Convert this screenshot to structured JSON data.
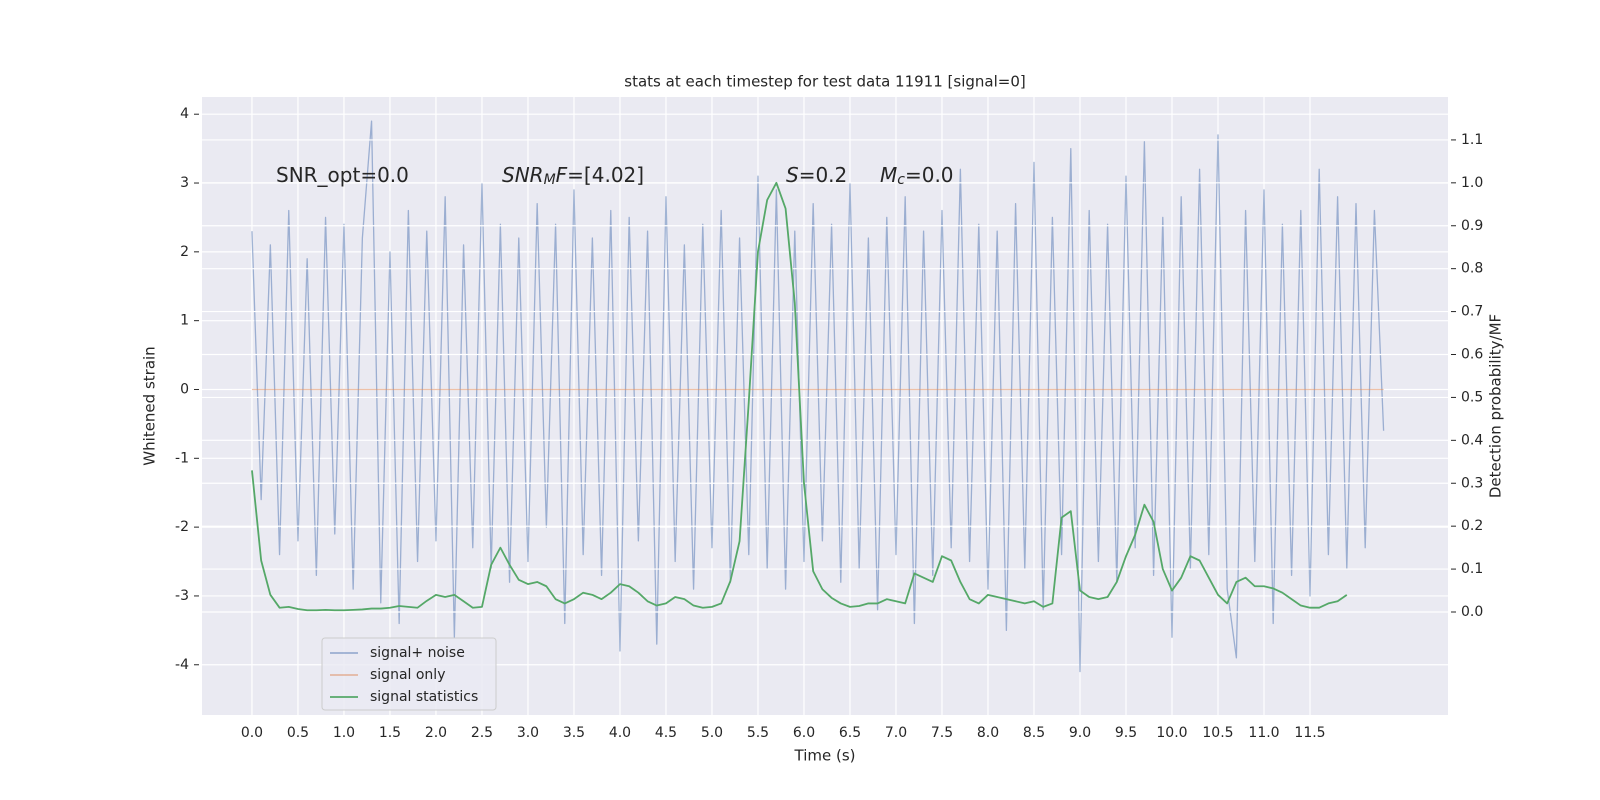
{
  "chart_data": {
    "type": "line",
    "title": "stats at each timestep for test data 11911 [signal=0]",
    "xlabel": "Time (s)",
    "ylabel": "Whitened strain",
    "y2label": "Detection probability/MF",
    "xlim": [
      -0.543,
      13.0
    ],
    "ylim": [
      -4.73,
      4.25
    ],
    "y2lim": [
      -0.24,
      1.2
    ],
    "xticks": [
      {
        "value": 0,
        "label": "0.0"
      },
      0.5,
      {
        "value": 1,
        "label": "1.0"
      },
      1.5,
      {
        "value": 2,
        "label": "2.0"
      },
      2.5,
      {
        "value": 3,
        "label": "3.0"
      },
      3.5,
      {
        "value": 4,
        "label": "4.0"
      },
      4.5,
      {
        "value": 5,
        "label": "5.0"
      },
      5.5,
      {
        "value": 6,
        "label": "6.0"
      },
      6.5,
      {
        "value": 7,
        "label": "7.0"
      },
      7.5,
      {
        "value": 8,
        "label": "8.0"
      },
      8.5,
      {
        "value": 9,
        "label": "9.0"
      },
      9.5,
      {
        "value": 10,
        "label": "10.0"
      },
      10.5,
      {
        "value": 11,
        "label": "11.0"
      },
      11.5
    ],
    "yticks": [
      -4,
      -3,
      -2,
      -1,
      0,
      1,
      2,
      3,
      4
    ],
    "y2ticks": [
      {
        "value": 0,
        "label": "0.0"
      },
      0.1,
      0.2,
      0.3,
      0.4,
      0.5,
      0.6,
      0.7,
      0.8,
      0.9,
      {
        "value": 1,
        "label": "1.0"
      },
      1.1
    ],
    "grid": true,
    "legend": "lower left",
    "annotations": [
      [
        {
          "text": "SNR_opt=0.0"
        }
      ],
      [
        {
          "text": "SNR",
          "italic": true
        },
        {
          "text": "M",
          "italic": true,
          "sub": true
        },
        {
          "text": "F",
          "italic": true
        },
        {
          "text": "=[4.02]"
        }
      ],
      [
        {
          "text": "S",
          "italic": true
        },
        {
          "text": "=0.2"
        }
      ],
      [
        {
          "text": "M",
          "italic": true
        },
        {
          "text": "c",
          "italic": true,
          "sub": true
        },
        {
          "text": "=0.0"
        }
      ]
    ],
    "series": [
      {
        "name": "signal+ noise",
        "color": "#4c72b0",
        "opacity": 0.5,
        "x": [
          0,
          0.1,
          0.2,
          0.3,
          0.4,
          0.5,
          0.6,
          0.7,
          0.8,
          0.9,
          1,
          1.1,
          1.2,
          1.3,
          1.4,
          1.5,
          1.6,
          1.7,
          1.8,
          1.9,
          2,
          2.1,
          2.2,
          2.3,
          2.4,
          2.5,
          2.6,
          2.7,
          2.8,
          2.9,
          3,
          3.1,
          3.2,
          3.3,
          3.4,
          3.5,
          3.6,
          3.7,
          3.8,
          3.9,
          4,
          4.1,
          4.2,
          4.3,
          4.4,
          4.5,
          4.6,
          4.7,
          4.8,
          4.9,
          5,
          5.1,
          5.2,
          5.3,
          5.4,
          5.5,
          5.6,
          5.7,
          5.8,
          5.9,
          6,
          6.1,
          6.2,
          6.3,
          6.4,
          6.5,
          6.6,
          6.7,
          6.8,
          6.9,
          7,
          7.1,
          7.2,
          7.3,
          7.4,
          7.5,
          7.6,
          7.7,
          7.8,
          7.9,
          8,
          8.1,
          8.2,
          8.3,
          8.4,
          8.5,
          8.6,
          8.7,
          8.8,
          8.9,
          9,
          9.1,
          9.2,
          9.3,
          9.4,
          9.5,
          9.6,
          9.7,
          9.8,
          9.9,
          10,
          10.1,
          10.2,
          10.3,
          10.4,
          10.5,
          10.6,
          10.7,
          10.8,
          10.9,
          11,
          11.1,
          11.2,
          11.3,
          11.4,
          11.5,
          11.6,
          11.7,
          11.8,
          11.9,
          12,
          12.1,
          12.2,
          12.3
        ],
        "values": [
          2.3,
          -1.6,
          2.1,
          -2.4,
          2.6,
          -2.2,
          1.9,
          -2.7,
          2.5,
          -2.1,
          2.4,
          -2.9,
          2.2,
          3.9,
          -3.1,
          2.0,
          -3.4,
          2.6,
          -2.5,
          2.3,
          -2.2,
          2.8,
          -3.6,
          2.1,
          -2.3,
          3.0,
          -2.6,
          2.4,
          -2.8,
          2.2,
          -2.5,
          2.7,
          -2.0,
          2.4,
          -3.4,
          2.9,
          -2.4,
          2.2,
          -2.7,
          2.6,
          -3.8,
          2.5,
          -2.2,
          2.3,
          -3.7,
          2.8,
          -2.5,
          2.1,
          -2.9,
          2.4,
          -2.3,
          2.6,
          -2.8,
          2.2,
          -2.4,
          3.1,
          -2.6,
          2.9,
          -2.9,
          2.3,
          -2.5,
          2.7,
          -2.2,
          2.4,
          -2.8,
          3.0,
          -2.6,
          2.2,
          -3.2,
          2.5,
          -2.4,
          2.8,
          -3.4,
          2.3,
          -2.7,
          2.6,
          -2.3,
          3.2,
          -2.5,
          2.4,
          -2.9,
          2.3,
          -3.5,
          2.7,
          -2.6,
          3.3,
          -3.2,
          2.5,
          -2.4,
          3.5,
          -4.1,
          2.6,
          -2.5,
          2.4,
          -2.8,
          3.1,
          -2.3,
          3.6,
          -2.7,
          2.5,
          -3.6,
          2.8,
          -2.6,
          3.2,
          -2.4,
          3.7,
          -2.9,
          -3.9,
          2.6,
          -2.5,
          2.9,
          -3.4,
          2.4,
          -2.7,
          2.6,
          -3.0,
          3.2,
          -2.4,
          2.8,
          -2.6,
          2.7,
          -2.3,
          2.6,
          -0.6
        ]
      },
      {
        "name": "signal only",
        "color": "#dd8452",
        "opacity": 0.5,
        "x": [
          0,
          12.3
        ],
        "values": [
          0,
          0
        ]
      },
      {
        "name": "signal statistics",
        "color": "#55a868",
        "opacity": 1,
        "axis": "y2",
        "x": [
          0,
          0.1,
          0.2,
          0.3,
          0.4,
          0.5,
          0.6,
          0.7,
          0.8,
          0.9,
          1,
          1.1,
          1.2,
          1.3,
          1.4,
          1.5,
          1.6,
          1.7,
          1.8,
          1.9,
          2,
          2.1,
          2.2,
          2.3,
          2.4,
          2.5,
          2.6,
          2.7,
          2.8,
          2.9,
          3,
          3.1,
          3.2,
          3.3,
          3.4,
          3.5,
          3.6,
          3.7,
          3.8,
          3.9,
          4,
          4.1,
          4.2,
          4.3,
          4.4,
          4.5,
          4.6,
          4.7,
          4.8,
          4.9,
          5,
          5.1,
          5.2,
          5.3,
          5.4,
          5.5,
          5.6,
          5.7,
          5.8,
          5.9,
          6,
          6.1,
          6.2,
          6.3,
          6.4,
          6.5,
          6.6,
          6.7,
          6.8,
          6.9,
          7,
          7.1,
          7.2,
          7.3,
          7.4,
          7.5,
          7.6,
          7.7,
          7.8,
          7.9,
          8,
          8.1,
          8.2,
          8.3,
          8.4,
          8.5,
          8.6,
          8.7,
          8.8,
          8.9,
          9,
          9.1,
          9.2,
          9.3,
          9.4,
          9.5,
          9.6,
          9.7,
          9.8,
          9.9,
          10,
          10.1,
          10.2,
          10.3,
          10.4,
          10.5,
          10.6,
          10.7,
          10.8,
          10.9,
          11,
          11.1,
          11.2,
          11.3,
          11.4,
          11.5,
          11.6,
          11.7,
          11.8,
          11.9
        ],
        "values": [
          0.33,
          0.12,
          0.04,
          0.01,
          0.012,
          0.007,
          0.004,
          0.004,
          0.005,
          0.004,
          0.004,
          0.005,
          0.006,
          0.008,
          0.008,
          0.01,
          0.014,
          0.012,
          0.01,
          0.026,
          0.04,
          0.035,
          0.04,
          0.025,
          0.01,
          0.012,
          0.11,
          0.15,
          0.11,
          0.075,
          0.065,
          0.07,
          0.06,
          0.03,
          0.02,
          0.03,
          0.045,
          0.04,
          0.03,
          0.045,
          0.065,
          0.06,
          0.045,
          0.025,
          0.015,
          0.02,
          0.035,
          0.03,
          0.015,
          0.01,
          0.012,
          0.02,
          0.072,
          0.165,
          0.49,
          0.84,
          0.96,
          1.0,
          0.94,
          0.72,
          0.3,
          0.095,
          0.053,
          0.033,
          0.02,
          0.012,
          0.014,
          0.02,
          0.02,
          0.03,
          0.025,
          0.02,
          0.09,
          0.08,
          0.07,
          0.13,
          0.12,
          0.07,
          0.03,
          0.02,
          0.04,
          0.035,
          0.03,
          0.025,
          0.02,
          0.025,
          0.012,
          0.02,
          0.22,
          0.235,
          0.05,
          0.035,
          0.03,
          0.035,
          0.07,
          0.13,
          0.18,
          0.25,
          0.21,
          0.1,
          0.05,
          0.08,
          0.13,
          0.12,
          0.08,
          0.04,
          0.02,
          0.07,
          0.08,
          0.06,
          0.06,
          0.055,
          0.045,
          0.03,
          0.015,
          0.01,
          0.01,
          0.02,
          0.025,
          0.04
        ]
      }
    ]
  }
}
